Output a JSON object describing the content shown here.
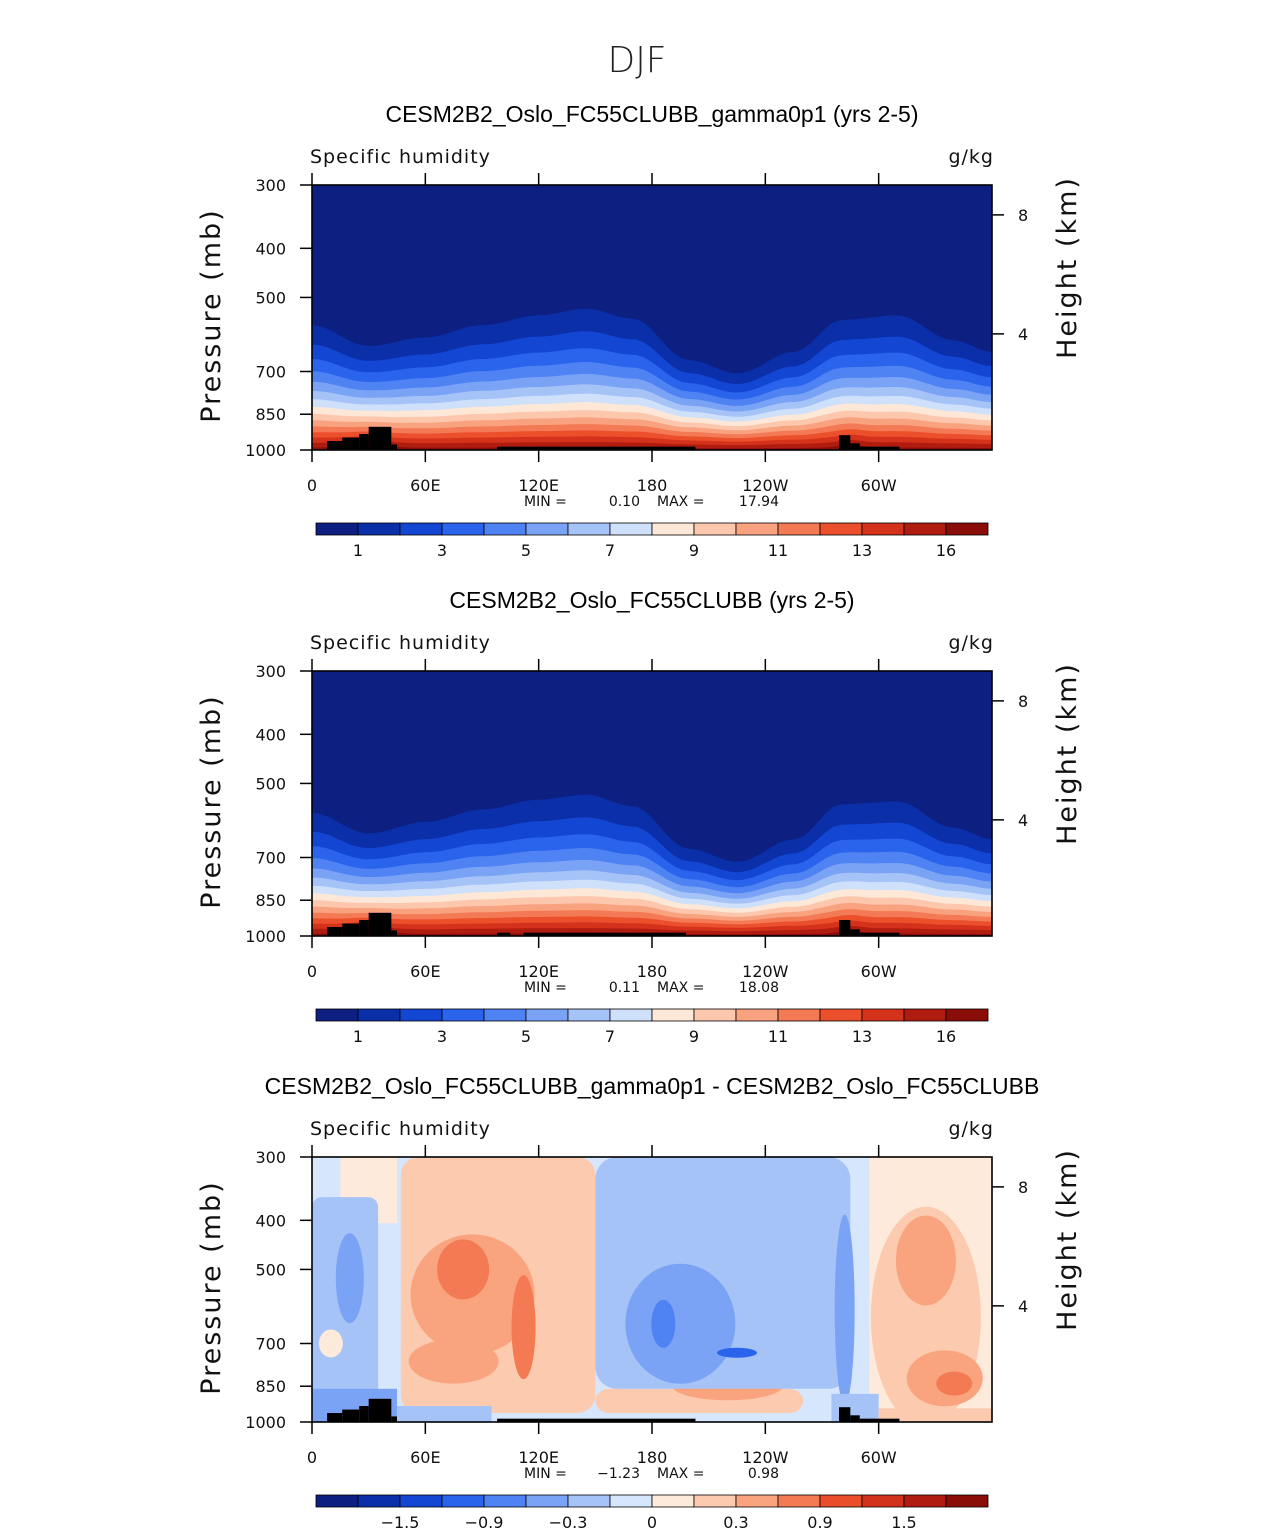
{
  "figure_title": "DJF",
  "chart_data": [
    {
      "type": "heatmap",
      "title": "CESM2B2_Oslo_FC55CLUBB_gamma0p1 (yrs 2-5)",
      "left_label": "Specific humidity",
      "right_label": "g/kg",
      "ylabel": "Pressure (mb)",
      "y2label": "Height (km)",
      "x_ticks": [
        "0",
        "60E",
        "120E",
        "180",
        "120W",
        "60W"
      ],
      "y_ticks": [
        "300",
        "400",
        "500",
        "700",
        "850",
        "1000"
      ],
      "y2_ticks": [
        "8",
        "4"
      ],
      "stats": {
        "min_label": "MIN =",
        "min": "0.10",
        "max_label": "MAX =",
        "max": "17.94"
      },
      "colorbar_labels": [
        "1",
        "3",
        "5",
        "7",
        "9",
        "11",
        "13",
        "16"
      ],
      "field": "total",
      "ridge": [
        [
          0,
          470
        ],
        [
          30,
          540
        ],
        [
          60,
          510
        ],
        [
          90,
          470
        ],
        [
          120,
          440
        ],
        [
          145,
          420
        ],
        [
          170,
          450
        ],
        [
          200,
          590
        ],
        [
          225,
          640
        ],
        [
          255,
          560
        ],
        [
          280,
          455
        ],
        [
          310,
          440
        ],
        [
          340,
          520
        ],
        [
          360,
          560
        ]
      ]
    },
    {
      "type": "heatmap",
      "title": "CESM2B2_Oslo_FC55CLUBB (yrs 2-5)",
      "left_label": "Specific humidity",
      "right_label": "g/kg",
      "ylabel": "Pressure (mb)",
      "y2label": "Height (km)",
      "x_ticks": [
        "0",
        "60E",
        "120E",
        "180",
        "120W",
        "60W"
      ],
      "y_ticks": [
        "300",
        "400",
        "500",
        "700",
        "850",
        "1000"
      ],
      "y2_ticks": [
        "8",
        "4"
      ],
      "stats": {
        "min_label": "MIN =",
        "min": "0.11",
        "max_label": "MAX =",
        "max": "18.08"
      },
      "colorbar_labels": [
        "1",
        "3",
        "5",
        "7",
        "9",
        "11",
        "13",
        "16"
      ],
      "field": "total",
      "ridge": [
        [
          0,
          475
        ],
        [
          30,
          545
        ],
        [
          60,
          505
        ],
        [
          90,
          465
        ],
        [
          120,
          435
        ],
        [
          145,
          420
        ],
        [
          170,
          455
        ],
        [
          200,
          600
        ],
        [
          225,
          650
        ],
        [
          255,
          565
        ],
        [
          280,
          450
        ],
        [
          310,
          440
        ],
        [
          340,
          525
        ],
        [
          360,
          565
        ]
      ]
    },
    {
      "type": "heatmap",
      "title": "CESM2B2_Oslo_FC55CLUBB_gamma0p1 - CESM2B2_Oslo_FC55CLUBB",
      "left_label": "Specific humidity",
      "right_label": "g/kg",
      "ylabel": "Pressure (mb)",
      "y2label": "Height (km)",
      "x_ticks": [
        "0",
        "60E",
        "120E",
        "180",
        "120W",
        "60W"
      ],
      "y_ticks": [
        "300",
        "400",
        "500",
        "700",
        "850",
        "1000"
      ],
      "y2_ticks": [
        "8",
        "4"
      ],
      "stats": {
        "min_label": "MIN =",
        "min": "−1.23",
        "max_label": "MAX =",
        "max": "0.98"
      },
      "colorbar_labels": [
        "−1.5",
        "−0.9",
        "−0.3",
        "0",
        "0.3",
        "0.9",
        "1.5"
      ],
      "field": "difference"
    }
  ],
  "colors": {
    "total_scale": [
      "#0d1f80",
      "#0a2fa8",
      "#1446d4",
      "#2a63ec",
      "#4f82f2",
      "#7aa3f5",
      "#a6c3f8",
      "#cfe0fb",
      "#fde8d8",
      "#fcc7ad",
      "#f9a280",
      "#f47a55",
      "#eb4f2c",
      "#d4321b",
      "#b01c10",
      "#8a0d08"
    ],
    "diff_scale": [
      "#0d1f80",
      "#0a2fa8",
      "#1446d4",
      "#2a63ec",
      "#4f82f2",
      "#7aa3f5",
      "#a6c3f8",
      "#d6e6fc",
      "#fdeadb",
      "#fccaae",
      "#f9a47f",
      "#f37a52",
      "#ea4d2a",
      "#d2311b",
      "#b01c10",
      "#8a0d08"
    ],
    "topography": "#000000"
  }
}
